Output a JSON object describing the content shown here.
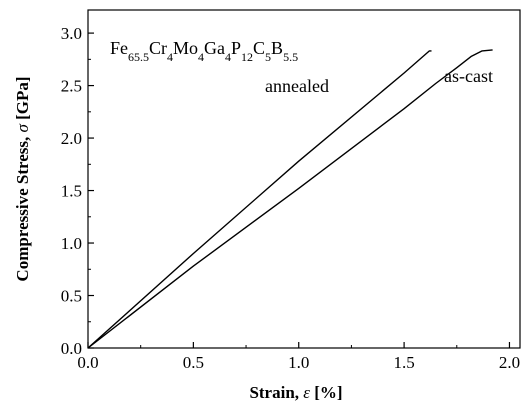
{
  "chart_data": {
    "type": "line",
    "title": "",
    "xlabel": {
      "prefix": "Strain, ",
      "symbol": "ε",
      "suffix": " [%]"
    },
    "ylabel": {
      "prefix": "Compressive Stress, ",
      "symbol": "σ",
      "suffix": " [GPa]"
    },
    "xlim": [
      0,
      2.05
    ],
    "ylim": [
      0,
      3.22
    ],
    "xticks": [
      "0.0",
      "0.5",
      "1.0",
      "1.5",
      "2.0"
    ],
    "yticks": [
      "0.0",
      "0.5",
      "1.0",
      "1.5",
      "2.0",
      "2.5",
      "3.0"
    ],
    "grid": false,
    "composition": [
      {
        "t": "Fe",
        "s": "65.5"
      },
      {
        "t": "Cr",
        "s": "4"
      },
      {
        "t": "Mo",
        "s": "4"
      },
      {
        "t": "Ga",
        "s": "4"
      },
      {
        "t": "P",
        "s": "12"
      },
      {
        "t": "C",
        "s": "5"
      },
      {
        "t": "B",
        "s": "5.5"
      }
    ],
    "series": [
      {
        "name": "annealed",
        "x": [
          0,
          0.5,
          1.0,
          1.5,
          1.62,
          1.63
        ],
        "y": [
          0,
          0.9,
          1.78,
          2.62,
          2.83,
          2.83
        ]
      },
      {
        "name": "as-cast",
        "x": [
          0,
          0.5,
          1.0,
          1.5,
          1.65,
          1.75,
          1.82,
          1.87,
          1.92
        ],
        "y": [
          0,
          0.78,
          1.52,
          2.28,
          2.52,
          2.67,
          2.78,
          2.83,
          2.84
        ]
      }
    ]
  }
}
